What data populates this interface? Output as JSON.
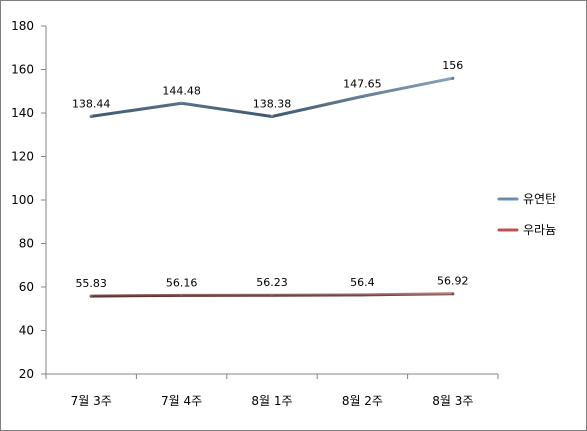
{
  "chart_data": {
    "type": "line",
    "categories": [
      "7월 3주",
      "7월 4주",
      "8월 1주",
      "8월 2주",
      "8월 3주"
    ],
    "series": [
      {
        "name": "유연탄",
        "values": [
          138.44,
          144.48,
          138.38,
          147.65,
          156
        ],
        "labels": [
          "138.44",
          "144.48",
          "138.38",
          "147.65",
          "156"
        ],
        "color": "#6a8caf"
      },
      {
        "name": "우라늄",
        "values": [
          55.83,
          56.16,
          56.23,
          56.4,
          56.92
        ],
        "labels": [
          "55.83",
          "56.16",
          "56.23",
          "56.4",
          "56.92"
        ],
        "color": "#c0504d"
      }
    ],
    "ylim": [
      20,
      180
    ],
    "yticks": [
      20,
      40,
      60,
      80,
      100,
      120,
      140,
      160,
      180
    ],
    "grid": false,
    "legend_position": "right"
  }
}
